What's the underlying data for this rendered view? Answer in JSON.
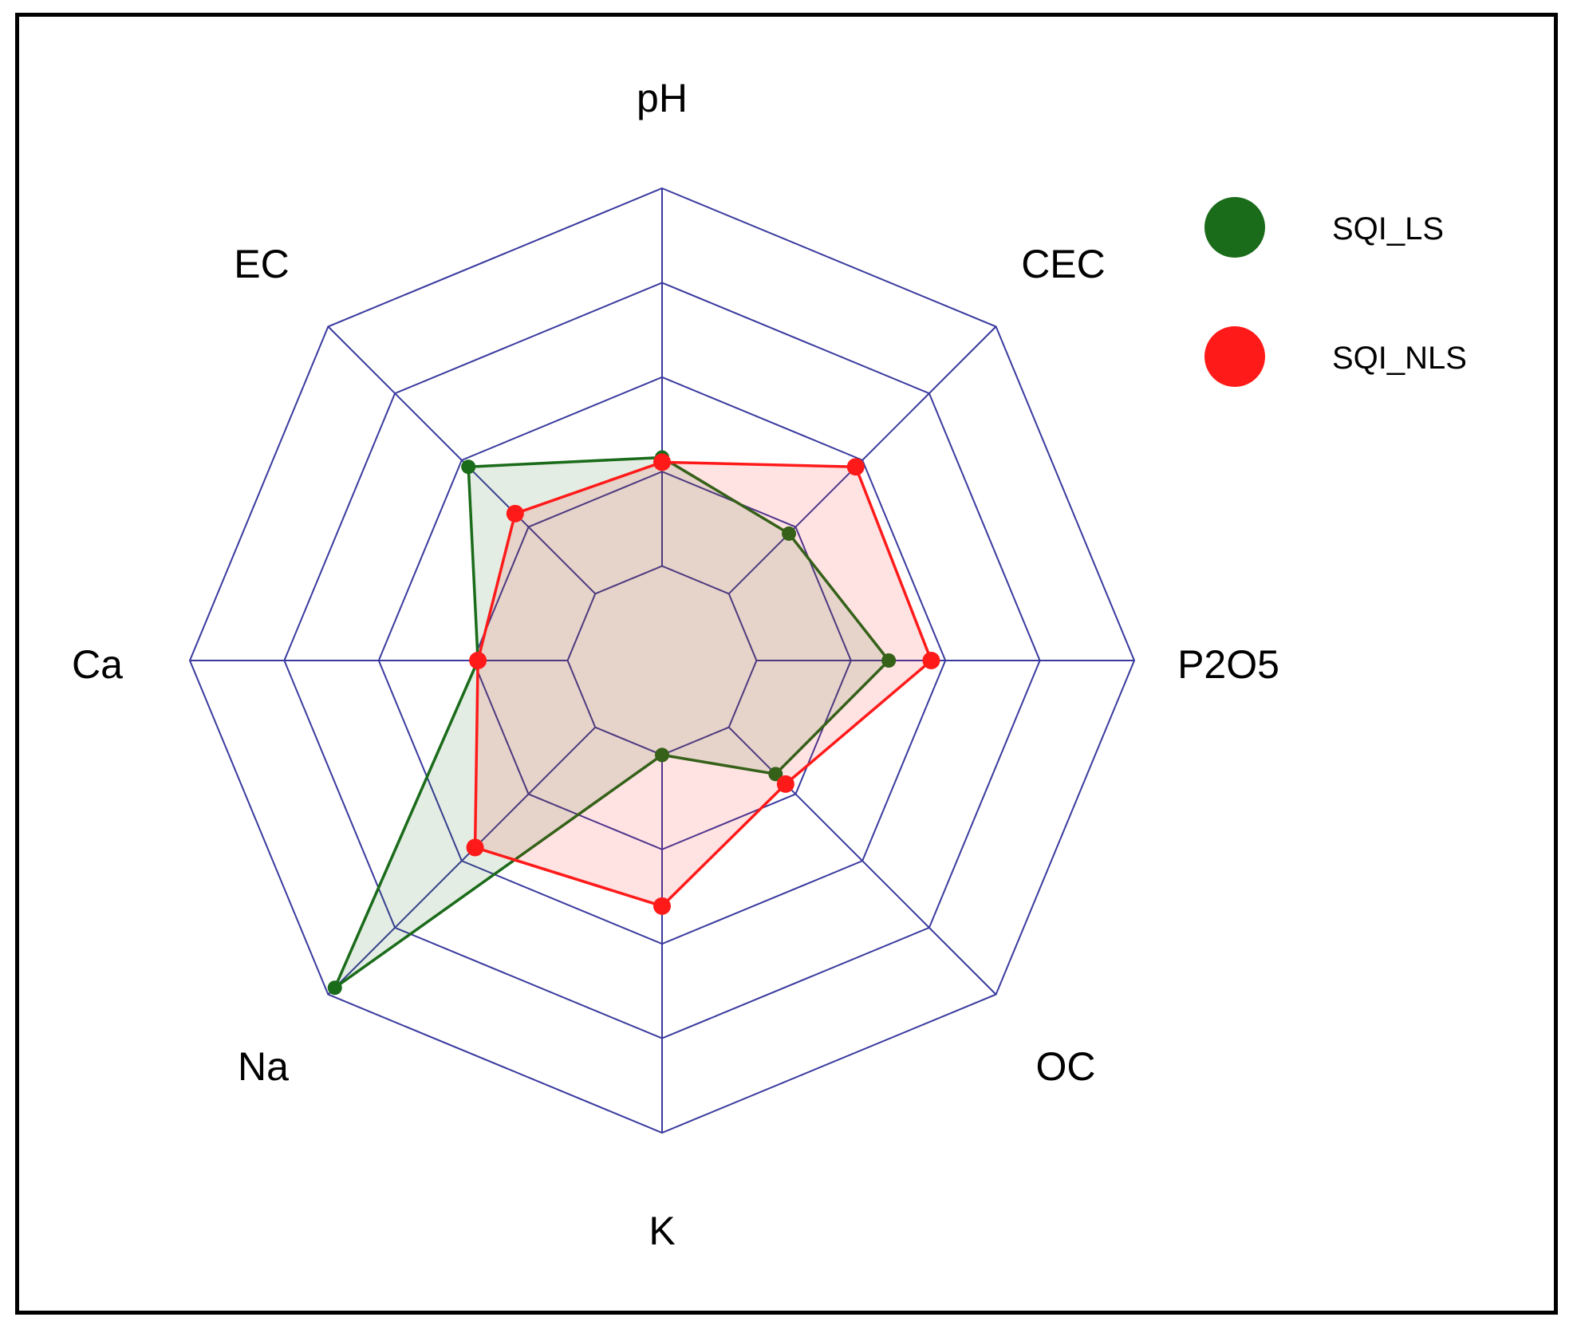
{
  "chart_data": {
    "type": "radar",
    "axes": [
      "pH",
      "CEC",
      "P2O5",
      "OC",
      "K",
      "Na",
      "Ca",
      "EC"
    ],
    "rings": 5,
    "grid": true,
    "legend_position": "top-right",
    "series": [
      {
        "name": "SQI_LS",
        "color": "#1a6b1a",
        "fill": "rgba(26,107,26,0.12)",
        "values": [
          2.15,
          1.9,
          2.4,
          1.7,
          1.0,
          4.9,
          1.95,
          2.9
        ]
      },
      {
        "name": "SQI_NLS",
        "color": "#ff1a1a",
        "fill": "rgba(255,26,26,0.12)",
        "values": [
          2.1,
          2.9,
          2.85,
          1.85,
          2.6,
          2.8,
          1.95,
          2.2
        ]
      }
    ],
    "colors": {
      "grid": "#3a3a9e",
      "frame": "#000000"
    }
  }
}
